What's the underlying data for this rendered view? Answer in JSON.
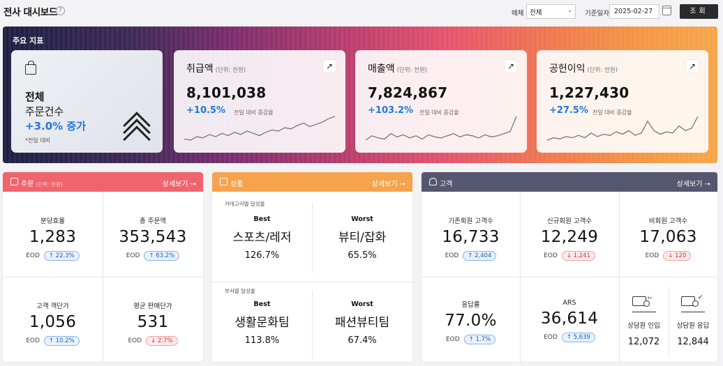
{
  "header": {
    "title": "전사 대시보드",
    "help_icon": "?",
    "media_label": "매체",
    "media_value": "전체",
    "date_label": "기준일자",
    "date_value": "2025-02-27",
    "search_label": "조회"
  },
  "hero": {
    "title": "주요 지표",
    "orders": {
      "line1": "전체",
      "line2": "주문건수",
      "line3": "+3.0% 증가",
      "note": "*전일 대비"
    },
    "kpis": [
      {
        "title": "취급액",
        "unit": "(단위: 천원)",
        "value": "8,101,038",
        "rate": "+10.5%",
        "rate_label": "전일 대비 증감율",
        "trend": [
          10,
          9,
          12,
          11,
          14,
          12,
          15,
          13,
          16,
          14,
          17,
          15,
          13,
          16,
          18,
          17,
          20,
          19,
          22,
          24,
          21,
          23,
          25,
          28,
          30
        ]
      },
      {
        "title": "매출액",
        "unit": "(단위: 천원)",
        "value": "7,824,867",
        "rate": "+103.2%",
        "rate_label": "전일 대비 증감율",
        "trend": [
          8,
          12,
          10,
          9,
          14,
          11,
          13,
          10,
          12,
          9,
          13,
          11,
          10,
          12,
          14,
          11,
          13,
          12,
          10,
          13,
          11,
          12,
          14,
          16,
          30
        ]
      },
      {
        "title": "공헌이익",
        "unit": "(단위: 천원)",
        "value": "1,227,430",
        "rate": "+27.5%",
        "rate_label": "전일 대비 증감율",
        "trend": [
          6,
          8,
          7,
          9,
          8,
          10,
          8,
          12,
          9,
          11,
          10,
          13,
          11,
          14,
          10,
          12,
          22,
          14,
          11,
          13,
          12,
          18,
          14,
          16,
          26
        ]
      }
    ]
  },
  "panels": {
    "orders": {
      "title": "주문",
      "unit": "(단위: 천원)",
      "link": "상세보기 →",
      "cells": [
        {
          "label": "분당효율",
          "value": "1,283",
          "eod": "EOD",
          "badge": "↑ 22.3%",
          "dir": "up"
        },
        {
          "label": "총 주문액",
          "value": "353,543",
          "eod": "EOD",
          "badge": "↑ 63.2%",
          "dir": "up"
        },
        {
          "label": "고객 객단가",
          "value": "1,056",
          "eod": "EOD",
          "badge": "↑ 10.2%",
          "dir": "up"
        },
        {
          "label": "평균 판매단가",
          "value": "531",
          "eod": "EOD",
          "badge": "↓ 2.7%",
          "dir": "down"
        }
      ]
    },
    "products": {
      "title": "상품",
      "link": "상세보기 →",
      "category_label": "카테고리별 달성율",
      "dept_label": "부서별 달성율",
      "rows": [
        {
          "best_head": "Best",
          "best_name": "스포츠/레저",
          "best_pct": "126.7%",
          "worst_head": "Worst",
          "worst_name": "뷰티/잡화",
          "worst_pct": "65.5%"
        },
        {
          "best_head": "Best",
          "best_name": "생활문화팀",
          "best_pct": "113.8%",
          "worst_head": "Worst",
          "worst_name": "패션뷰티팀",
          "worst_pct": "67.4%"
        }
      ]
    },
    "customers": {
      "title": "고객",
      "link": "상세보기 →",
      "cells": [
        {
          "label": "기존회원 고객수",
          "value": "16,733",
          "eod": "EOD",
          "badge": "↑ 2,404",
          "dir": "up"
        },
        {
          "label": "신규회원 고객수",
          "value": "12,249",
          "eod": "EOD",
          "badge": "↓ 1,241",
          "dir": "down"
        },
        {
          "label": "비회원 고객수",
          "value": "17,063",
          "eod": "EOD",
          "badge": "↓ 120",
          "dir": "down"
        },
        {
          "label": "응답률",
          "value": "77.0%",
          "eod": "EOD",
          "badge": "↑ 1.7%",
          "dir": "up"
        },
        {
          "label": "ARS",
          "value": "36,614",
          "eod": "EOD",
          "badge": "↑ 5,639",
          "dir": "up"
        }
      ],
      "agents": [
        {
          "label": "상담원 인입",
          "value": "12,072",
          "icon": "agent-inbound-icon"
        },
        {
          "label": "상담원 응답",
          "value": "12,844",
          "icon": "agent-response-icon"
        }
      ]
    }
  },
  "colors": {
    "orders_head": "#f0646e",
    "products_head": "#f6a34e",
    "customers_head": "#55566f",
    "accent": "#1e78d8"
  }
}
